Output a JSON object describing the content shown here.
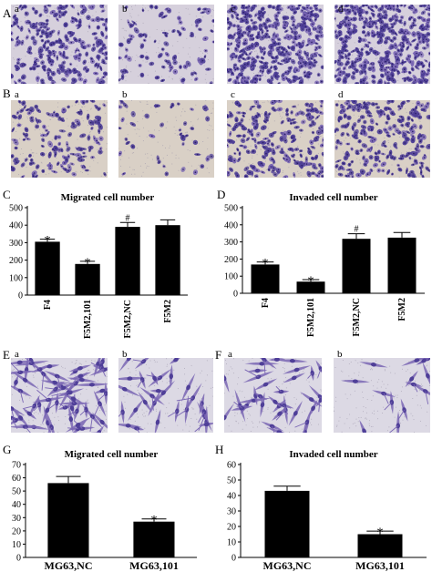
{
  "figure": {
    "panel_labels": {
      "A": "A",
      "B": "B",
      "C": "C",
      "D": "D",
      "E": "E",
      "F": "F",
      "G": "G",
      "H": "H"
    },
    "micro_labels": {
      "a": "a",
      "b": "b",
      "c": "c",
      "d": "d"
    },
    "colors": {
      "bg_migration": "#d6d0dc",
      "bg_invasion": "#d9d0c6",
      "bg_single": "#dcd9e4",
      "cell": "#4f3f98",
      "cell_light": "#7a66b4",
      "bar": "#000000"
    }
  },
  "chart_data": [
    {
      "id": "C",
      "type": "bar",
      "title": "Migrated cell number",
      "categories": [
        "F4",
        "F5M2,101",
        "F5M2,NC",
        "F5M2"
      ],
      "values": [
        305,
        178,
        390,
        400
      ],
      "errors": [
        15,
        15,
        25,
        30
      ],
      "annotations": [
        "*",
        "*",
        "#",
        ""
      ],
      "ylim": [
        0,
        500
      ],
      "yticks": [
        0,
        100,
        200,
        300,
        400,
        500
      ]
    },
    {
      "id": "D",
      "type": "bar",
      "title": "Invaded cell number",
      "categories": [
        "F4",
        "F5M2,101",
        "F5M2,NC",
        "F5M2"
      ],
      "values": [
        168,
        68,
        318,
        325
      ],
      "errors": [
        15,
        12,
        30,
        30
      ],
      "annotations": [
        "*",
        "*",
        "#",
        ""
      ],
      "ylim": [
        0,
        500
      ],
      "yticks": [
        0,
        100,
        200,
        300,
        400,
        500
      ]
    },
    {
      "id": "G",
      "type": "bar",
      "title": "Migrated cell number",
      "categories": [
        "MG63,NC",
        "MG63,101"
      ],
      "values": [
        56,
        27
      ],
      "errors": [
        5,
        2
      ],
      "annotations": [
        "",
        "*"
      ],
      "ylim": [
        0,
        70
      ],
      "yticks": [
        0,
        10,
        20,
        30,
        40,
        50,
        60,
        70
      ]
    },
    {
      "id": "H",
      "type": "bar",
      "title": "Invaded cell number",
      "categories": [
        "MG63,NC",
        "MG63,101"
      ],
      "values": [
        43,
        15
      ],
      "errors": [
        3,
        2
      ],
      "annotations": [
        "",
        "*"
      ],
      "ylim": [
        0,
        60
      ],
      "yticks": [
        0,
        10,
        20,
        30,
        40,
        50,
        60
      ]
    }
  ]
}
